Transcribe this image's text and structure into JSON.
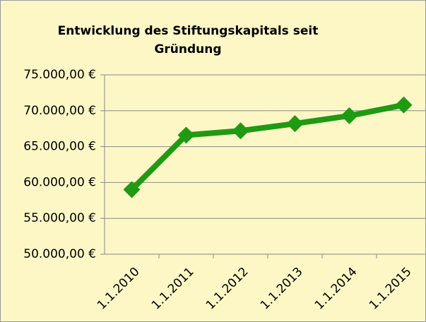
{
  "chart_data": {
    "type": "line",
    "title": "Entwicklung des Stiftungskapitals seit Gründung",
    "categories": [
      "1.1.2010",
      "1.1.2011",
      "1.1.2012",
      "1.1.2013",
      "1.1.2014",
      "1.1.2015"
    ],
    "series": [
      {
        "name": "Stiftungskapital",
        "color": "#1f9a12",
        "values": [
          59000,
          66600,
          67200,
          68200,
          69300,
          70800
        ]
      }
    ],
    "ylim": [
      50000,
      75000
    ],
    "yticks": [
      {
        "value": 50000,
        "label": "50.000,00 €"
      },
      {
        "value": 55000,
        "label": "55.000,00 €"
      },
      {
        "value": 60000,
        "label": "60.000,00 €"
      },
      {
        "value": 65000,
        "label": "65.000,00 €"
      },
      {
        "value": 70000,
        "label": "70.000,00 €"
      },
      {
        "value": 75000,
        "label": "75.000,00 €"
      }
    ],
    "grid": true
  }
}
